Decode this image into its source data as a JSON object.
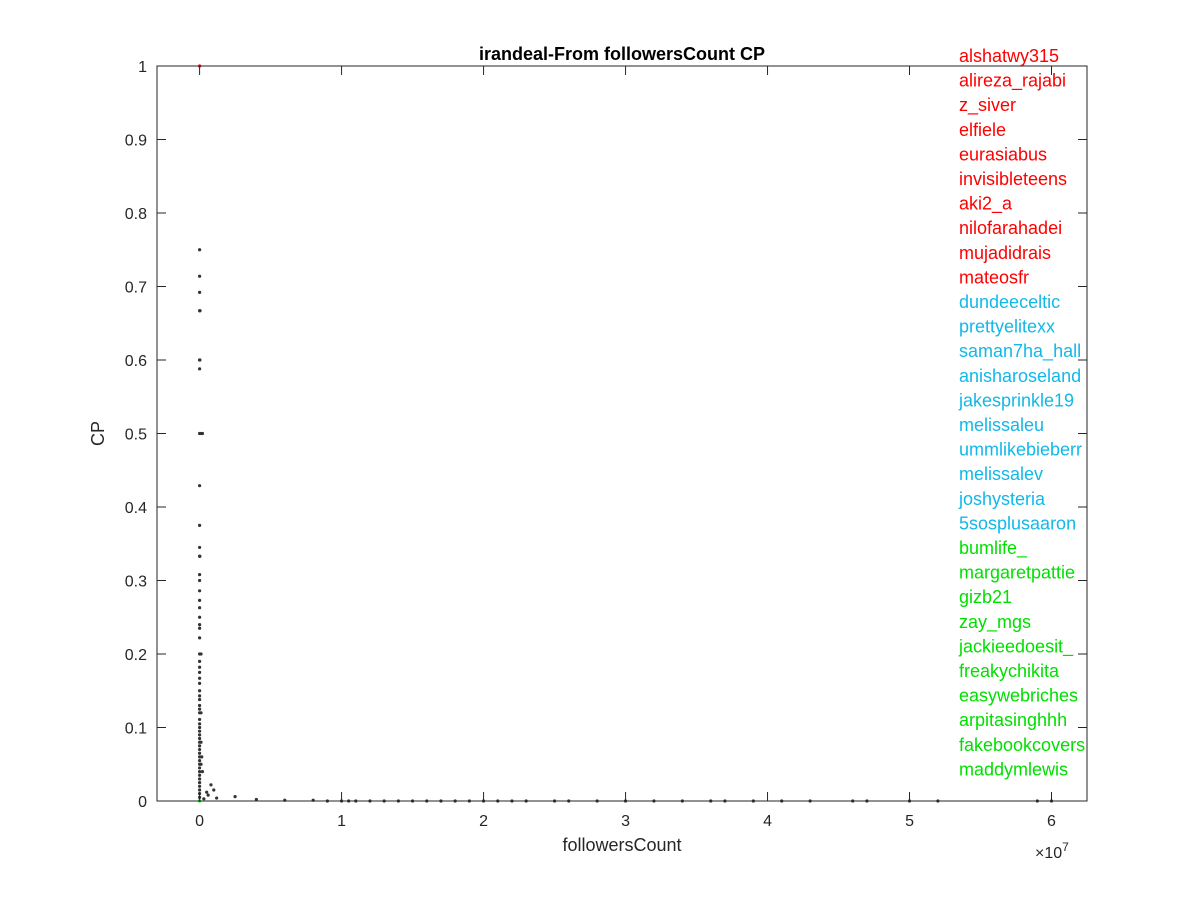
{
  "chart_data": {
    "type": "scatter",
    "title": "irandeal-From followersCount CP",
    "xlabel": "followersCount",
    "ylabel": "CP",
    "x_scale_label": "×10",
    "x_scale_exponent": "7",
    "x_multiplier": 10000000,
    "xlim": [
      -0.3,
      6.25
    ],
    "ylim": [
      0,
      1
    ],
    "x_ticks": [
      0,
      1,
      2,
      3,
      4,
      5,
      6
    ],
    "x_tick_labels": [
      "0",
      "1",
      "2",
      "3",
      "4",
      "5",
      "6"
    ],
    "y_ticks": [
      0,
      0.1,
      0.2,
      0.3,
      0.4,
      0.5,
      0.6,
      0.7,
      0.8,
      0.9,
      1
    ],
    "y_tick_labels": [
      "0",
      "0.1",
      "0.2",
      "0.3",
      "0.4",
      "0.5",
      "0.6",
      "0.7",
      "0.8",
      "0.9",
      "1"
    ],
    "grid": false,
    "legend": "right side, stacked text labels",
    "colors": {
      "red": "#ff0000",
      "cyan": "#12b8e8",
      "green": "#00e000",
      "points": "#333333",
      "axis": "#262626"
    },
    "series": [
      {
        "color": "#333333",
        "points": [
          [
            0.0,
            0.75
          ],
          [
            0.0,
            0.714
          ],
          [
            0.0,
            0.692
          ],
          [
            0.0,
            0.667
          ],
          [
            0.003,
            0.667
          ],
          [
            0.0,
            0.6
          ],
          [
            0.002,
            0.6
          ],
          [
            0.0,
            0.588
          ],
          [
            0.0,
            0.5
          ],
          [
            0.01,
            0.5
          ],
          [
            0.02,
            0.5
          ],
          [
            0.0,
            0.429
          ],
          [
            0.0,
            0.375
          ],
          [
            0.0,
            0.345
          ],
          [
            0.0,
            0.333
          ],
          [
            0.002,
            0.333
          ],
          [
            0.0,
            0.308
          ],
          [
            0.0,
            0.3
          ],
          [
            0.0,
            0.286
          ],
          [
            0.0,
            0.273
          ],
          [
            0.0,
            0.263
          ],
          [
            0.0,
            0.25
          ],
          [
            0.0,
            0.24
          ],
          [
            0.0,
            0.235
          ],
          [
            0.0,
            0.222
          ],
          [
            0.0,
            0.2
          ],
          [
            0.01,
            0.2
          ],
          [
            0.0,
            0.19
          ],
          [
            0.0,
            0.182
          ],
          [
            0.0,
            0.175
          ],
          [
            0.0,
            0.167
          ],
          [
            0.0,
            0.16
          ],
          [
            0.0,
            0.15
          ],
          [
            0.0,
            0.143
          ],
          [
            0.0,
            0.138
          ],
          [
            0.0,
            0.13
          ],
          [
            0.0,
            0.125
          ],
          [
            0.0,
            0.12
          ],
          [
            0.0,
            0.111
          ],
          [
            0.0,
            0.105
          ],
          [
            0.0,
            0.1
          ],
          [
            0.0,
            0.095
          ],
          [
            0.0,
            0.09
          ],
          [
            0.0,
            0.085
          ],
          [
            0.0,
            0.08
          ],
          [
            0.0,
            0.075
          ],
          [
            0.0,
            0.07
          ],
          [
            0.0,
            0.065
          ],
          [
            0.0,
            0.06
          ],
          [
            0.0,
            0.055
          ],
          [
            0.0,
            0.05
          ],
          [
            0.0,
            0.045
          ],
          [
            0.0,
            0.04
          ],
          [
            0.0,
            0.035
          ],
          [
            0.0,
            0.03
          ],
          [
            0.0,
            0.025
          ],
          [
            0.0,
            0.02
          ],
          [
            0.0,
            0.015
          ],
          [
            0.0,
            0.01
          ],
          [
            0.0,
            0.005
          ],
          [
            0.01,
            0.12
          ],
          [
            0.01,
            0.08
          ],
          [
            0.01,
            0.05
          ],
          [
            0.02,
            0.04
          ],
          [
            0.015,
            0.06
          ],
          [
            0.05,
            0.012
          ],
          [
            0.06,
            0.008
          ],
          [
            0.08,
            0.022
          ],
          [
            0.1,
            0.015
          ],
          [
            0.25,
            0.006
          ],
          [
            0.03,
            0.003
          ],
          [
            0.12,
            0.004
          ],
          [
            0.4,
            0.002
          ],
          [
            0.6,
            0.001
          ],
          [
            0.8,
            0.001
          ],
          [
            0.9,
            0.0
          ],
          [
            1.0,
            0.0
          ],
          [
            1.05,
            0.0
          ],
          [
            1.1,
            0.0
          ],
          [
            1.2,
            0.0
          ],
          [
            1.3,
            0.0
          ],
          [
            1.4,
            0.0
          ],
          [
            1.5,
            0.0
          ],
          [
            1.6,
            0.0
          ],
          [
            1.7,
            0.0
          ],
          [
            1.8,
            0.0
          ],
          [
            1.9,
            0.0
          ],
          [
            2.0,
            0.0
          ],
          [
            2.1,
            0.0
          ],
          [
            2.2,
            0.0
          ],
          [
            2.3,
            0.0
          ],
          [
            2.5,
            0.0
          ],
          [
            2.6,
            0.0
          ],
          [
            2.8,
            0.0
          ],
          [
            3.0,
            0.0
          ],
          [
            3.2,
            0.0
          ],
          [
            3.4,
            0.0
          ],
          [
            3.6,
            0.0
          ],
          [
            3.7,
            0.0
          ],
          [
            3.9,
            0.0
          ],
          [
            4.1,
            0.0
          ],
          [
            4.3,
            0.0
          ],
          [
            4.6,
            0.0
          ],
          [
            4.7,
            0.0
          ],
          [
            5.0,
            0.0
          ],
          [
            5.2,
            0.0
          ],
          [
            5.9,
            0.0
          ],
          [
            6.0,
            0.0
          ]
        ]
      },
      {
        "color": "#ff0000",
        "points": [
          [
            0.0,
            1.0
          ]
        ]
      },
      {
        "color": "#00e000",
        "points": [
          [
            0.0,
            0.0
          ]
        ]
      }
    ],
    "labels": [
      {
        "text": "alshatwy315",
        "color": "#ff0000"
      },
      {
        "text": "alireza_rajabi",
        "color": "#ff0000"
      },
      {
        "text": "z_siver",
        "color": "#ff0000"
      },
      {
        "text": "elfiele",
        "color": "#ff0000"
      },
      {
        "text": "eurasiabus",
        "color": "#ff0000"
      },
      {
        "text": "invisibleteens",
        "color": "#ff0000"
      },
      {
        "text": "aki2_a",
        "color": "#ff0000"
      },
      {
        "text": "nilofarahadei",
        "color": "#ff0000"
      },
      {
        "text": "mujadidrais",
        "color": "#ff0000"
      },
      {
        "text": "mateosfr",
        "color": "#ff0000"
      },
      {
        "text": "dundeeceltic",
        "color": "#12b8e8"
      },
      {
        "text": "prettyelitexx",
        "color": "#12b8e8"
      },
      {
        "text": "saman7ha_hall",
        "color": "#12b8e8"
      },
      {
        "text": "anisharoseland",
        "color": "#12b8e8"
      },
      {
        "text": "jakesprinkle19",
        "color": "#12b8e8"
      },
      {
        "text": "melissaleu",
        "color": "#12b8e8"
      },
      {
        "text": "ummlikebieberr",
        "color": "#12b8e8"
      },
      {
        "text": "melissalev",
        "color": "#12b8e8"
      },
      {
        "text": "joshysteria",
        "color": "#12b8e8"
      },
      {
        "text": "5sosplusaaron",
        "color": "#12b8e8"
      },
      {
        "text": "bumlife_",
        "color": "#00e000"
      },
      {
        "text": "margaretpattie",
        "color": "#00e000"
      },
      {
        "text": "gizb21",
        "color": "#00e000"
      },
      {
        "text": "zay_mgs",
        "color": "#00e000"
      },
      {
        "text": "jackieedoesit_",
        "color": "#00e000"
      },
      {
        "text": "freakychikita",
        "color": "#00e000"
      },
      {
        "text": "easywebriches",
        "color": "#00e000"
      },
      {
        "text": "arpitasinghhh",
        "color": "#00e000"
      },
      {
        "text": "fakebookcovers",
        "color": "#00e000"
      },
      {
        "text": "maddymlewis",
        "color": "#00e000"
      }
    ]
  }
}
